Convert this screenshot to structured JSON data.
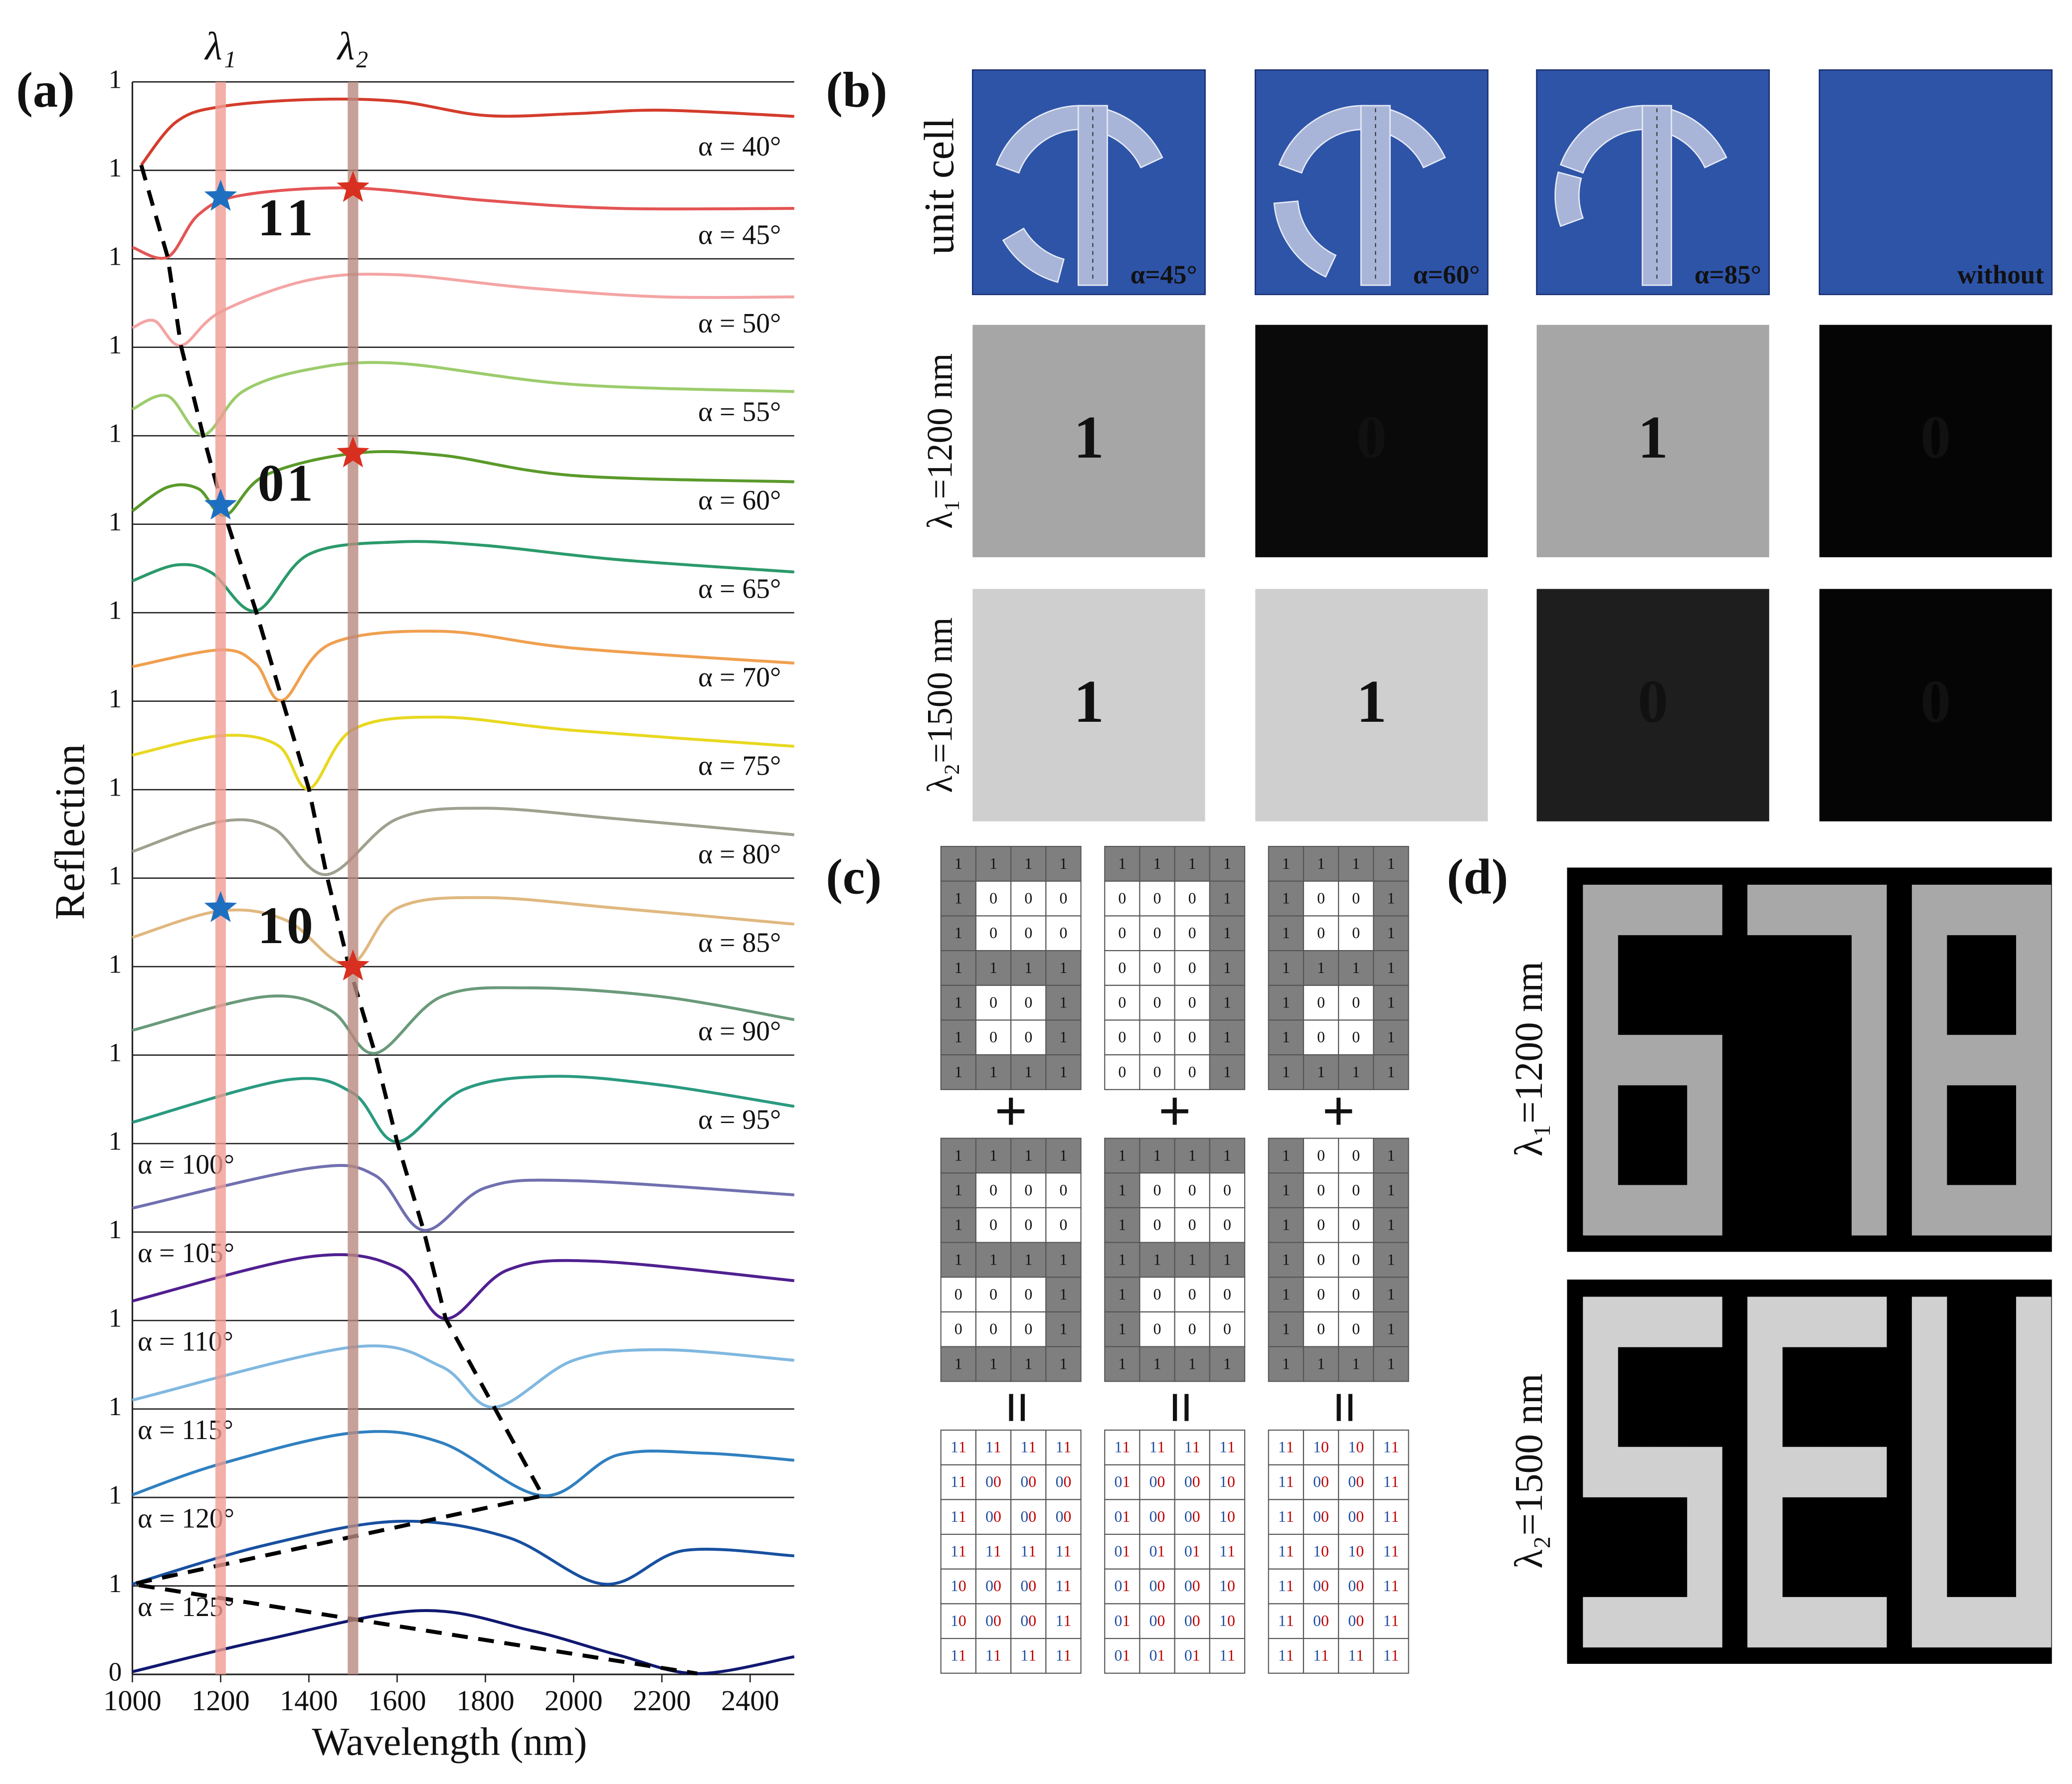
{
  "chart_data": {
    "type": "line",
    "panel_label": "(a)",
    "xlabel": "Wavelength (nm)",
    "ylabel": "Reflection",
    "xlim": [
      1000,
      2500
    ],
    "xticks": [
      1000,
      1200,
      1400,
      1600,
      1800,
      2000,
      2200,
      2400
    ],
    "ylim": [
      0,
      1
    ],
    "yticks": [
      0,
      1
    ],
    "bands": [
      {
        "x": 1200,
        "label": "λ₁",
        "color": "#ef9c94"
      },
      {
        "x": 1500,
        "label": "λ₂",
        "color": "#b98a80"
      }
    ],
    "series": [
      {
        "name": "α = 40°",
        "color": "#d43c2c",
        "x": [
          1020,
          1100,
          1200,
          1400,
          1600,
          1800,
          2000,
          2200,
          2500
        ],
        "values": [
          0.06,
          0.55,
          0.72,
          0.8,
          0.78,
          0.62,
          0.64,
          0.68,
          0.61
        ]
      },
      {
        "name": "α = 45°",
        "color": "#e45454",
        "x": [
          1000,
          1080,
          1150,
          1250,
          1500,
          1800,
          2100,
          2500
        ],
        "values": [
          0.13,
          0.02,
          0.5,
          0.72,
          0.8,
          0.66,
          0.57,
          0.57
        ]
      },
      {
        "name": "α = 50°",
        "color": "#f4a4a4",
        "x": [
          1000,
          1050,
          1110,
          1200,
          1400,
          1600,
          1900,
          2200,
          2500
        ],
        "values": [
          0.22,
          0.3,
          0.02,
          0.4,
          0.76,
          0.82,
          0.67,
          0.57,
          0.57
        ]
      },
      {
        "name": "α = 55°",
        "color": "#9ccc6c",
        "x": [
          1000,
          1080,
          1160,
          1250,
          1400,
          1600,
          2000,
          2500
        ],
        "values": [
          0.3,
          0.45,
          0.01,
          0.5,
          0.75,
          0.82,
          0.58,
          0.5
        ]
      },
      {
        "name": "α = 60°",
        "color": "#5a9a2a",
        "x": [
          1000,
          1080,
          1150,
          1210,
          1300,
          1500,
          1700,
          2000,
          2500
        ],
        "values": [
          0.15,
          0.42,
          0.4,
          0.1,
          0.55,
          0.8,
          0.78,
          0.55,
          0.48
        ]
      },
      {
        "name": "α = 65°",
        "color": "#2a9a6a",
        "x": [
          1000,
          1100,
          1180,
          1280,
          1400,
          1600,
          1800,
          2100,
          2500
        ],
        "values": [
          0.36,
          0.54,
          0.45,
          0.02,
          0.66,
          0.8,
          0.76,
          0.6,
          0.46
        ]
      },
      {
        "name": "α = 70°",
        "color": "#f0a050",
        "x": [
          1000,
          1200,
          1280,
          1340,
          1450,
          1700,
          2000,
          2500
        ],
        "values": [
          0.39,
          0.58,
          0.42,
          0.01,
          0.65,
          0.79,
          0.6,
          0.43
        ]
      },
      {
        "name": "α = 75°",
        "color": "#e8d820",
        "x": [
          1000,
          1200,
          1330,
          1400,
          1500,
          1700,
          2000,
          2500
        ],
        "values": [
          0.39,
          0.61,
          0.5,
          0.01,
          0.68,
          0.82,
          0.67,
          0.49
        ]
      },
      {
        "name": "α = 80°",
        "color": "#a0a090",
        "x": [
          1000,
          1200,
          1320,
          1440,
          1600,
          1800,
          2100,
          2500
        ],
        "values": [
          0.3,
          0.64,
          0.56,
          0.04,
          0.67,
          0.79,
          0.67,
          0.49
        ]
      },
      {
        "name": "α = 85°",
        "color": "#e0b880",
        "x": [
          1000,
          1200,
          1350,
          1490,
          1600,
          1800,
          2100,
          2500
        ],
        "values": [
          0.33,
          0.63,
          0.52,
          0.02,
          0.66,
          0.78,
          0.66,
          0.48
        ]
      },
      {
        "name": "α = 90°",
        "color": "#6a9a7a",
        "x": [
          1000,
          1300,
          1450,
          1550,
          1700,
          1900,
          2200,
          2500
        ],
        "values": [
          0.28,
          0.66,
          0.5,
          0.02,
          0.66,
          0.76,
          0.66,
          0.4
        ]
      },
      {
        "name": "α = 95°",
        "color": "#2a9a80",
        "x": [
          1000,
          1350,
          1500,
          1600,
          1750,
          1950,
          2200,
          2500
        ],
        "values": [
          0.24,
          0.72,
          0.57,
          0.02,
          0.61,
          0.76,
          0.66,
          0.42
        ]
      },
      {
        "name": "α = 100°",
        "color": "#7070b0",
        "label_side": "left",
        "x": [
          1000,
          1400,
          1550,
          1660,
          1800,
          2000,
          2500
        ],
        "values": [
          0.27,
          0.72,
          0.64,
          0.02,
          0.5,
          0.58,
          0.42
        ]
      },
      {
        "name": "α = 105°",
        "color": "#502090",
        "label_side": "left",
        "x": [
          1000,
          1400,
          1600,
          1710,
          1850,
          2050,
          2500
        ],
        "values": [
          0.22,
          0.72,
          0.6,
          0.02,
          0.57,
          0.67,
          0.45
        ]
      },
      {
        "name": "α = 110°",
        "color": "#80b8e0",
        "label_side": "left",
        "x": [
          1000,
          1500,
          1700,
          1820,
          2000,
          2200,
          2500
        ],
        "values": [
          0.1,
          0.7,
          0.48,
          0.02,
          0.55,
          0.67,
          0.55
        ]
      },
      {
        "name": "α = 115°",
        "color": "#3080c0",
        "label_side": "left",
        "x": [
          1000,
          1200,
          1500,
          1700,
          1930,
          2100,
          2300,
          2500
        ],
        "values": [
          0.03,
          0.38,
          0.73,
          0.62,
          0.02,
          0.48,
          0.5,
          0.42
        ]
      },
      {
        "name": "α = 120°",
        "color": "#1850a0",
        "label_side": "left",
        "x": [
          1000,
          1300,
          1600,
          1850,
          2070,
          2250,
          2500
        ],
        "values": [
          0.02,
          0.46,
          0.73,
          0.55,
          0.02,
          0.4,
          0.34
        ]
      },
      {
        "name": "α = 125°",
        "color": "#101870",
        "label_side": "left",
        "x": [
          1000,
          1300,
          1650,
          1900,
          2100,
          2280,
          2500
        ],
        "values": [
          0.03,
          0.39,
          0.72,
          0.5,
          0.22,
          0.01,
          0.2
        ]
      }
    ],
    "markers": [
      {
        "x": 1200,
        "series": 1,
        "value": 0.7,
        "color": "#1f6fc0"
      },
      {
        "x": 1500,
        "series": 1,
        "value": 0.8,
        "color": "#d83020"
      },
      {
        "x": 1200,
        "series": 4,
        "value": 0.21,
        "color": "#1f6fc0"
      },
      {
        "x": 1500,
        "series": 4,
        "value": 0.8,
        "color": "#d83020"
      },
      {
        "x": 1200,
        "series": 9,
        "value": 0.66,
        "color": "#1f6fc0"
      },
      {
        "x": 1500,
        "series": 9,
        "value": 0.0,
        "color": "#d83020"
      }
    ],
    "bit_colors": [
      "#1f6fc0",
      "#d03020"
    ],
    "codes": [
      {
        "series": 1,
        "bits": [
          "1",
          "1"
        ]
      },
      {
        "series": 4,
        "bits": [
          "0",
          "1"
        ]
      },
      {
        "series": 9,
        "bits": [
          "1",
          "0"
        ]
      }
    ]
  },
  "panel_b": {
    "label": "(b)",
    "columns": [
      "α=45°",
      "α=60°",
      "α=85°",
      "without"
    ],
    "cell_color": "#2e54a8",
    "rows": [
      {
        "label": "unit cell"
      },
      {
        "label": "λ₁=1200 nm",
        "digit_color": "#1f6fc0",
        "cells": [
          {
            "text": "1",
            "shade": "#a6a6a6"
          },
          {
            "text": "0",
            "shade": "#0a0a0a"
          },
          {
            "text": "1",
            "shade": "#a6a6a6"
          },
          {
            "text": "0",
            "shade": "#050505"
          }
        ]
      },
      {
        "label": "λ₂=1500 nm",
        "digit_color": "#c00000",
        "cells": [
          {
            "text": "1",
            "shade": "#cfcfcf"
          },
          {
            "text": "1",
            "shade": "#cfcfcf"
          },
          {
            "text": "0",
            "shade": "#1e1e1e"
          },
          {
            "text": "0",
            "shade": "#050505"
          }
        ]
      }
    ]
  },
  "panel_c": {
    "label": "(c)",
    "top_color": "#1f4fa0",
    "middle_color": "#c00000",
    "top": [
      [
        [
          "1",
          "1",
          "1",
          "1"
        ],
        [
          "1",
          "0",
          "0",
          "0"
        ],
        [
          "1",
          "0",
          "0",
          "0"
        ],
        [
          "1",
          "1",
          "1",
          "1"
        ],
        [
          "1",
          "0",
          "0",
          "1"
        ],
        [
          "1",
          "0",
          "0",
          "1"
        ],
        [
          "1",
          "1",
          "1",
          "1"
        ]
      ],
      [
        [
          "1",
          "1",
          "1",
          "1"
        ],
        [
          "0",
          "0",
          "0",
          "1"
        ],
        [
          "0",
          "0",
          "0",
          "1"
        ],
        [
          "0",
          "0",
          "0",
          "1"
        ],
        [
          "0",
          "0",
          "0",
          "1"
        ],
        [
          "0",
          "0",
          "0",
          "1"
        ],
        [
          "0",
          "0",
          "0",
          "1"
        ]
      ],
      [
        [
          "1",
          "1",
          "1",
          "1"
        ],
        [
          "1",
          "0",
          "0",
          "1"
        ],
        [
          "1",
          "0",
          "0",
          "1"
        ],
        [
          "1",
          "1",
          "1",
          "1"
        ],
        [
          "1",
          "0",
          "0",
          "1"
        ],
        [
          "1",
          "0",
          "0",
          "1"
        ],
        [
          "1",
          "1",
          "1",
          "1"
        ]
      ]
    ],
    "middle": [
      [
        [
          "1",
          "1",
          "1",
          "1"
        ],
        [
          "1",
          "0",
          "0",
          "0"
        ],
        [
          "1",
          "0",
          "0",
          "0"
        ],
        [
          "1",
          "1",
          "1",
          "1"
        ],
        [
          "0",
          "0",
          "0",
          "1"
        ],
        [
          "0",
          "0",
          "0",
          "1"
        ],
        [
          "1",
          "1",
          "1",
          "1"
        ]
      ],
      [
        [
          "1",
          "1",
          "1",
          "1"
        ],
        [
          "1",
          "0",
          "0",
          "0"
        ],
        [
          "1",
          "0",
          "0",
          "0"
        ],
        [
          "1",
          "1",
          "1",
          "1"
        ],
        [
          "1",
          "0",
          "0",
          "0"
        ],
        [
          "1",
          "0",
          "0",
          "0"
        ],
        [
          "1",
          "1",
          "1",
          "1"
        ]
      ],
      [
        [
          "1",
          "0",
          "0",
          "1"
        ],
        [
          "1",
          "0",
          "0",
          "1"
        ],
        [
          "1",
          "0",
          "0",
          "1"
        ],
        [
          "1",
          "0",
          "0",
          "1"
        ],
        [
          "1",
          "0",
          "0",
          "1"
        ],
        [
          "1",
          "0",
          "0",
          "1"
        ],
        [
          "1",
          "1",
          "1",
          "1"
        ]
      ]
    ],
    "bottom": [
      [
        [
          "11",
          "11",
          "11",
          "11"
        ],
        [
          "11",
          "00",
          "00",
          "00"
        ],
        [
          "11",
          "00",
          "00",
          "00"
        ],
        [
          "11",
          "11",
          "11",
          "11"
        ],
        [
          "10",
          "00",
          "00",
          "11"
        ],
        [
          "10",
          "00",
          "00",
          "11"
        ],
        [
          "11",
          "11",
          "11",
          "11"
        ]
      ],
      [
        [
          "11",
          "11",
          "11",
          "11"
        ],
        [
          "01",
          "00",
          "00",
          "10"
        ],
        [
          "01",
          "00",
          "00",
          "10"
        ],
        [
          "01",
          "01",
          "01",
          "11"
        ],
        [
          "01",
          "00",
          "00",
          "10"
        ],
        [
          "01",
          "00",
          "00",
          "10"
        ],
        [
          "01",
          "01",
          "01",
          "11"
        ]
      ],
      [
        [
          "11",
          "10",
          "10",
          "11"
        ],
        [
          "11",
          "00",
          "00",
          "11"
        ],
        [
          "11",
          "00",
          "00",
          "11"
        ],
        [
          "11",
          "10",
          "10",
          "11"
        ],
        [
          "11",
          "00",
          "00",
          "11"
        ],
        [
          "11",
          "00",
          "00",
          "11"
        ],
        [
          "11",
          "11",
          "11",
          "11"
        ]
      ]
    ]
  },
  "panel_d": {
    "label": "(d)",
    "rows": [
      {
        "label": "λ₁=1200 nm",
        "shade": "#a8a8a8"
      },
      {
        "label": "λ₂=1500 nm",
        "shade": "#d0d0d0"
      }
    ]
  }
}
